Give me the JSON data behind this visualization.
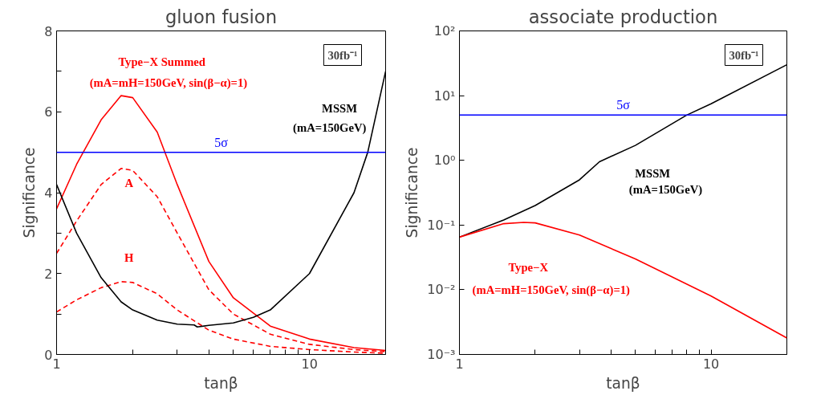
{
  "chart_data": [
    {
      "type": "line",
      "title": "gluon fusion",
      "xlabel": "tanβ",
      "ylabel": "Significance",
      "log": "x",
      "xlim": [
        1,
        20
      ],
      "xticks": [
        1,
        {
          "value": 2,
          "label": null
        },
        {
          "value": 3,
          "label": null
        },
        {
          "value": 4,
          "label": null
        },
        {
          "value": 5,
          "label": null
        },
        {
          "value": 6,
          "label": null
        },
        {
          "value": 7,
          "label": null
        },
        {
          "value": 8,
          "label": null
        },
        {
          "value": 9,
          "label": null
        },
        10,
        {
          "value": 20,
          "label": null
        }
      ],
      "ylim": [
        0,
        8
      ],
      "yticks": [
        0,
        {
          "value": 1,
          "label": null
        },
        2,
        {
          "value": 3,
          "label": null
        },
        4,
        {
          "value": 5,
          "label": null
        },
        6,
        {
          "value": 7,
          "label": null
        },
        8
      ],
      "grid": false,
      "x": [
        1,
        1.2,
        1.5,
        1.8,
        2,
        2.5,
        3,
        4,
        5,
        7,
        10,
        15,
        20
      ],
      "series": [
        {
          "color": "#ff0000",
          "line_style": "solid",
          "values": [
            3.6,
            4.7,
            5.8,
            6.4,
            6.35,
            5.5,
            4.2,
            2.3,
            1.4,
            0.7,
            0.38,
            0.17,
            0.1
          ]
        },
        {
          "color": "#ff0000",
          "line_style": "dashed",
          "values": [
            2.5,
            3.3,
            4.2,
            4.6,
            4.55,
            3.9,
            3.0,
            1.6,
            1.0,
            0.5,
            0.25,
            0.12,
            0.07
          ]
        },
        {
          "color": "#ff0000",
          "line_style": "dashed",
          "values": [
            1.05,
            1.35,
            1.65,
            1.8,
            1.78,
            1.5,
            1.1,
            0.6,
            0.38,
            0.2,
            0.12,
            0.06,
            0.03
          ]
        },
        {
          "color": "#000000",
          "line_style": "solid",
          "x": [
            1,
            1.2,
            1.5,
            1.8,
            2,
            2.5,
            3,
            3.5,
            3.6,
            4,
            5,
            6,
            7,
            10,
            15,
            17,
            20
          ],
          "values": [
            4.2,
            3.0,
            1.9,
            1.3,
            1.1,
            0.85,
            0.75,
            0.73,
            0.68,
            0.72,
            0.78,
            0.92,
            1.1,
            2.0,
            4.0,
            5.0,
            7.0
          ]
        }
      ],
      "ref_lines": [
        {
          "axis": "y",
          "value": 5,
          "label": "5σ",
          "color": "#0000ff"
        }
      ],
      "annotations": [
        "Type−X Summed",
        "(mA=mH=150GeV, sin(β−α)=1)",
        "A",
        "H",
        "MSSM",
        "(mA=150GeV)",
        "30fb⁻¹"
      ]
    },
    {
      "type": "line",
      "title": "associate production",
      "xlabel": "tanβ",
      "ylabel": "Significance",
      "log": "xy",
      "xlim": [
        1,
        20
      ],
      "xticks": [
        1,
        {
          "value": 2,
          "label": null
        },
        {
          "value": 3,
          "label": null
        },
        {
          "value": 4,
          "label": null
        },
        {
          "value": 5,
          "label": null
        },
        {
          "value": 6,
          "label": null
        },
        {
          "value": 7,
          "label": null
        },
        {
          "value": 8,
          "label": null
        },
        {
          "value": 9,
          "label": null
        },
        10,
        {
          "value": 20,
          "label": null
        }
      ],
      "ylim": [
        0.001,
        100
      ],
      "yticks": [
        {
          "value": 0.001,
          "label": "10⁻³"
        },
        {
          "value": 0.01,
          "label": "10⁻²"
        },
        {
          "value": 0.1,
          "label": "10⁻¹"
        },
        {
          "value": 1,
          "label": "10⁰"
        },
        {
          "value": 10,
          "label": "10¹"
        },
        {
          "value": 100,
          "label": "10²"
        }
      ],
      "grid": false,
      "x": [
        1,
        1.5,
        2,
        3,
        3.6,
        5,
        8,
        10,
        20
      ],
      "series": [
        {
          "color": "#000000",
          "line_style": "solid",
          "values": [
            0.065,
            0.12,
            0.2,
            0.5,
            0.95,
            1.7,
            5,
            7.5,
            30
          ]
        },
        {
          "color": "#ff0000",
          "line_style": "solid",
          "x": [
            1,
            1.5,
            1.8,
            2,
            3,
            5,
            10,
            20
          ],
          "values": [
            0.065,
            0.105,
            0.11,
            0.108,
            0.07,
            0.03,
            0.008,
            0.0018
          ]
        }
      ],
      "ref_lines": [
        {
          "axis": "y",
          "value": 5,
          "label": "5σ",
          "color": "#0000ff"
        }
      ],
      "annotations": [
        "MSSM",
        "(mA=150GeV)",
        "Type−X",
        "(mA=mH=150GeV, sin(β−α)=1)",
        "30fb⁻¹"
      ]
    }
  ]
}
